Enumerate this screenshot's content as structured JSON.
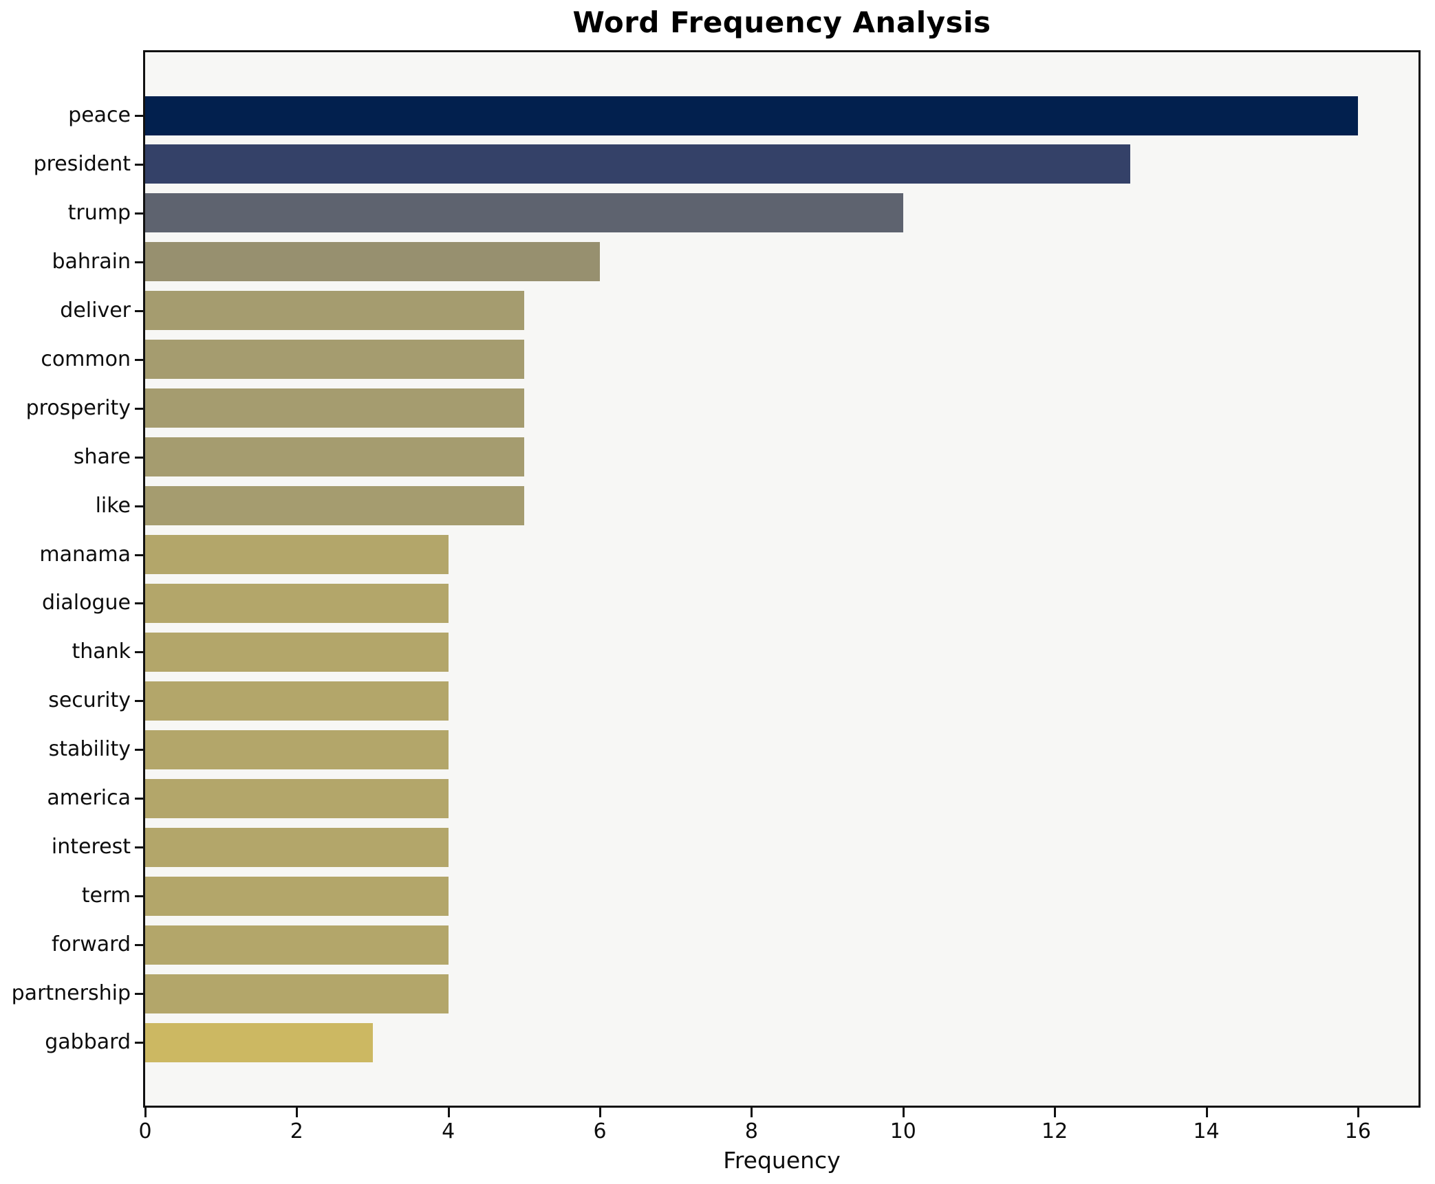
{
  "chart_data": {
    "type": "bar",
    "orientation": "horizontal",
    "title": "Word Frequency Analysis",
    "xlabel": "Frequency",
    "ylabel": "",
    "categories": [
      "peace",
      "president",
      "trump",
      "bahrain",
      "deliver",
      "common",
      "prosperity",
      "share",
      "like",
      "manama",
      "dialogue",
      "thank",
      "security",
      "stability",
      "america",
      "interest",
      "term",
      "forward",
      "partnership",
      "gabbard"
    ],
    "values": [
      16,
      13,
      10,
      6,
      5,
      5,
      5,
      5,
      5,
      4,
      4,
      4,
      4,
      4,
      4,
      4,
      4,
      4,
      4,
      3
    ],
    "bar_colors": [
      "#02204e",
      "#344168",
      "#5e636f",
      "#97906f",
      "#a59c6f",
      "#a59c6f",
      "#a59c6f",
      "#a59c6f",
      "#a59c6f",
      "#b3a66a",
      "#b3a66a",
      "#b3a66a",
      "#b3a66a",
      "#b3a66a",
      "#b3a66a",
      "#b3a66a",
      "#b3a66a",
      "#b3a66a",
      "#b3a66a",
      "#ccb862",
      "#note-unused"
    ],
    "xlim": [
      0,
      16.8
    ],
    "xticks": [
      0,
      2,
      4,
      6,
      8,
      10,
      12,
      14,
      16
    ],
    "grid": false,
    "legend_position": "none",
    "plot_background": "#f7f7f5",
    "figure_background": "#ffffff",
    "spine_color": "#111111"
  }
}
